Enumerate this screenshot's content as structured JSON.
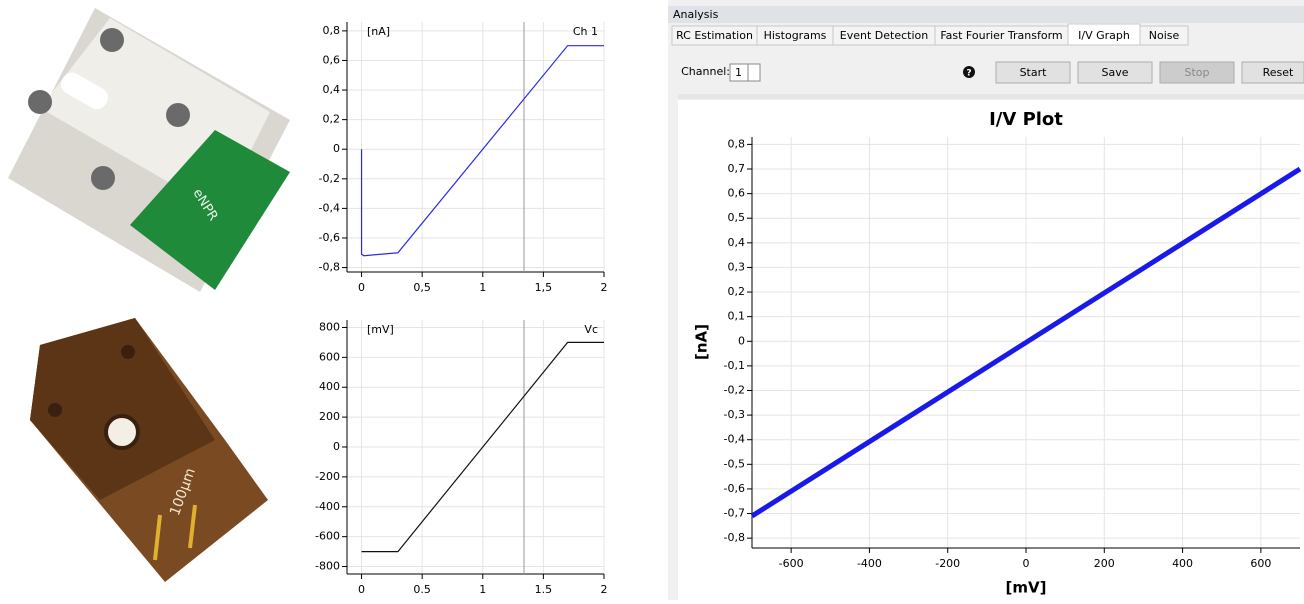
{
  "photos": [
    {
      "label": "eNPR"
    },
    {
      "label": "100µm"
    }
  ],
  "app": {
    "panel_title": "Analysis",
    "tabs": [
      "RC Estimation",
      "Histograms",
      "Event Detection",
      "Fast Fourier Transform",
      "I/V Graph",
      "Noise"
    ],
    "active_tab": 4,
    "channel_label": "Channel:",
    "channel_value": "1",
    "help": "?",
    "buttons": [
      {
        "label": "Start",
        "enabled": true
      },
      {
        "label": "Save",
        "enabled": true
      },
      {
        "label": "Stop",
        "enabled": false
      },
      {
        "label": "Reset",
        "enabled": true
      }
    ]
  },
  "chart_data": [
    {
      "type": "line",
      "ylabel": "[nA]",
      "x": [
        0,
        0,
        0.02,
        0.3,
        1.7,
        2
      ],
      "series": [
        {
          "name": "Ch 1",
          "color": "#2a2ae6",
          "values": [
            0,
            -0.71,
            -0.72,
            -0.7,
            0.7,
            0.7
          ]
        }
      ],
      "xlim": [
        -0.12,
        2
      ],
      "ylim": [
        -0.83,
        0.86
      ],
      "xticks": [
        0,
        {
          "value": 0.5,
          "label": "0,5"
        },
        1,
        {
          "value": 1.5,
          "label": "1,5"
        },
        2
      ],
      "yticks": [
        {
          "value": -0.8,
          "label": "-0,8"
        },
        {
          "value": -0.6,
          "label": "-0,6"
        },
        {
          "value": -0.4,
          "label": "-0,4"
        },
        {
          "value": -0.2,
          "label": "-0,2"
        },
        0,
        {
          "value": 0.2,
          "label": "0,2"
        },
        {
          "value": 0.4,
          "label": "0,4"
        },
        {
          "value": 0.6,
          "label": "0,6"
        },
        {
          "value": 0.8,
          "label": "0,8"
        }
      ],
      "grid": true,
      "cursor_x": 1.34
    },
    {
      "type": "line",
      "ylabel": "[mV]",
      "x": [
        0,
        0.3,
        1.7,
        2
      ],
      "series": [
        {
          "name": "Vc",
          "color": "#111111",
          "values": [
            -700,
            -700,
            700,
            700
          ]
        }
      ],
      "xlim": [
        -0.12,
        2
      ],
      "ylim": [
        -850,
        850
      ],
      "xticks": [
        0,
        0.5,
        1,
        1.5,
        2
      ],
      "yticks": [
        -800,
        -600,
        -400,
        -200,
        0,
        200,
        400,
        600,
        800
      ],
      "grid": true,
      "cursor_x": 1.34
    },
    {
      "type": "line",
      "title": "I/V Plot",
      "xlabel": "[mV]",
      "ylabel": "[nA]",
      "x": [
        -700,
        700
      ],
      "values": [
        -0.71,
        0.7
      ],
      "color": "#1a1ae8",
      "xlim": [
        -700,
        700
      ],
      "ylim": [
        -0.84,
        0.83
      ],
      "xticks": [
        -600,
        -400,
        -200,
        0,
        200,
        400,
        600
      ],
      "yticks": [
        {
          "value": -0.8,
          "label": "-0,8"
        },
        {
          "value": -0.7,
          "label": "-0,7"
        },
        {
          "value": -0.6,
          "label": "-0,6"
        },
        {
          "value": -0.5,
          "label": "-0,5"
        },
        {
          "value": -0.4,
          "label": "-0,4"
        },
        {
          "value": -0.3,
          "label": "-0,3"
        },
        {
          "value": -0.2,
          "label": "-0,2"
        },
        {
          "value": -0.1,
          "label": "-0,1"
        },
        0,
        {
          "value": 0.1,
          "label": "0,1"
        },
        {
          "value": 0.2,
          "label": "0,2"
        },
        {
          "value": 0.3,
          "label": "0,3"
        },
        {
          "value": 0.4,
          "label": "0,4"
        },
        {
          "value": 0.5,
          "label": "0,5"
        },
        {
          "value": 0.6,
          "label": "0,6"
        },
        {
          "value": 0.7,
          "label": "0,7"
        },
        {
          "value": 0.8,
          "label": "0,8"
        }
      ],
      "grid": true
    }
  ]
}
